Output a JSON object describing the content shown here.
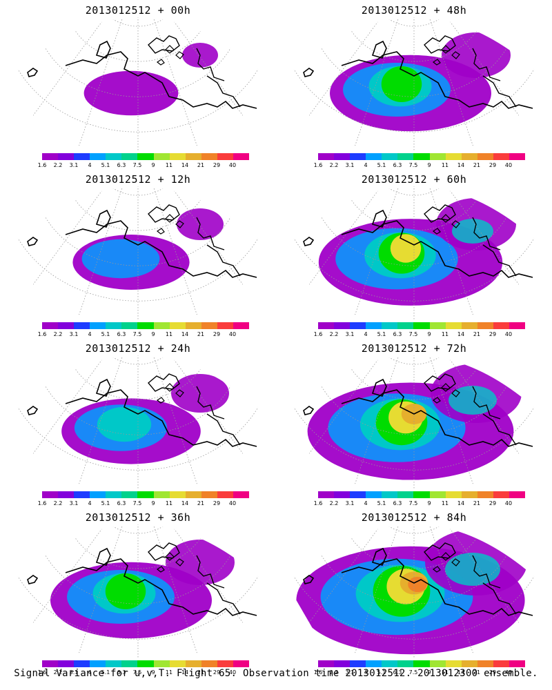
{
  "panels": [
    {
      "title": "2013012512 + 00h"
    },
    {
      "title": "2013012512 + 48h"
    },
    {
      "title": "2013012512 + 12h"
    },
    {
      "title": "2013012512 + 60h"
    },
    {
      "title": "2013012512 + 24h"
    },
    {
      "title": "2013012512 + 72h"
    },
    {
      "title": "2013012512 + 36h"
    },
    {
      "title": "2013012512 + 84h"
    }
  ],
  "colorbar": {
    "ticks": [
      "1.6",
      "2.2",
      "3.1",
      "4",
      "5.1",
      "6.3",
      "7.5",
      "9",
      "11",
      "14",
      "21",
      "29",
      "40"
    ],
    "colors": [
      "#a000c8",
      "#8200dc",
      "#1e3cff",
      "#00a0ff",
      "#00c8c8",
      "#00d28c",
      "#00dc00",
      "#a0e632",
      "#e6dc32",
      "#e6af2d",
      "#f08228",
      "#fa3c3c",
      "#f00082"
    ]
  },
  "footer": "Signal Variance for u,v,T. Flight 65. Observation time 2013012512. 2013012300 ensemble."
}
